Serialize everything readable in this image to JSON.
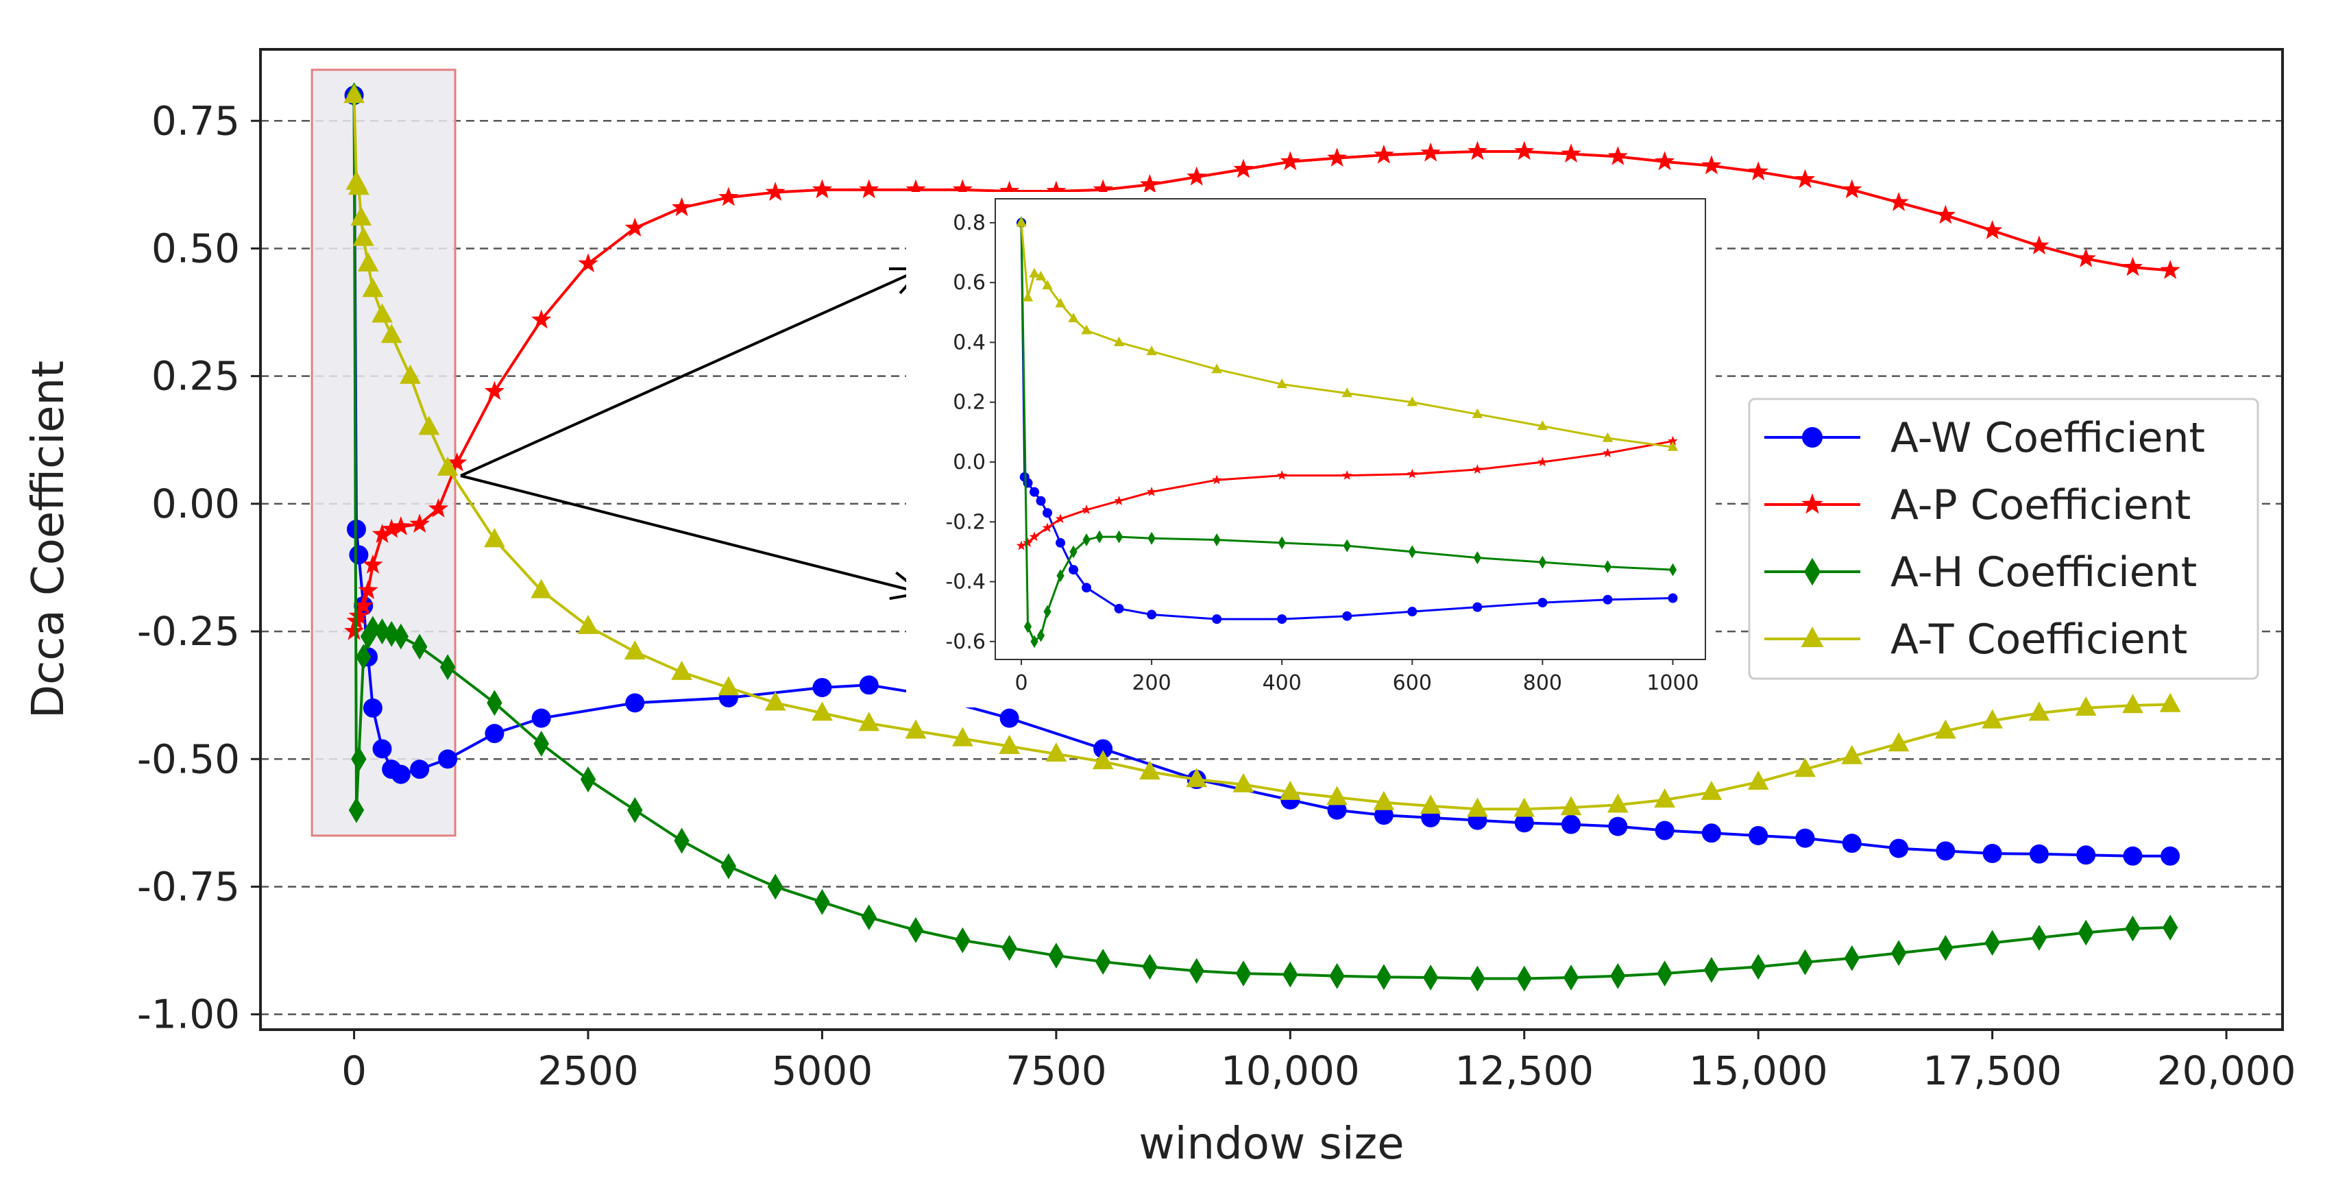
{
  "chart_data": {
    "type": "line",
    "title": "",
    "xlabel": "window size",
    "ylabel": "Dcca Coefficient",
    "xlim": [
      -1000,
      20600
    ],
    "ylim": [
      -1.03,
      0.89
    ],
    "xticks": [
      0,
      2500,
      5000,
      7500,
      10000,
      12500,
      15000,
      17500,
      20000
    ],
    "xtick_labels": [
      "0",
      "2500",
      "5000",
      "7500",
      "10,000",
      "12,500",
      "15,000",
      "17,500",
      "20,000"
    ],
    "yticks": [
      0.75,
      0.5,
      0.25,
      0.0,
      -0.25,
      -0.5,
      -0.75,
      -1.0
    ],
    "ytick_labels": [
      "0.75",
      "0.50",
      "0.25",
      "0.00",
      "-0.25",
      "-0.50",
      "-0.75",
      "-1.00"
    ],
    "grid": "horizontal dashed",
    "legend_position": "right",
    "highlight_box": {
      "x": [
        -450,
        1080
      ],
      "y": [
        -0.65,
        0.85
      ]
    },
    "series": [
      {
        "name": "A-W Coefficient",
        "color": "#0000ff",
        "marker": "circle",
        "x": [
          0,
          25,
          50,
          100,
          150,
          200,
          300,
          400,
          500,
          700,
          1000,
          1500,
          2000,
          3000,
          4000,
          5000,
          5500,
          6000,
          7000,
          8000,
          9000,
          10000,
          10500,
          11000,
          11500,
          12000,
          12500,
          13000,
          13500,
          14000,
          14500,
          15000,
          15500,
          16000,
          16500,
          17000,
          17500,
          18000,
          18500,
          19000,
          19400
        ],
        "y": [
          0.8,
          -0.05,
          -0.1,
          -0.2,
          -0.3,
          -0.4,
          -0.48,
          -0.52,
          -0.53,
          -0.52,
          -0.5,
          -0.45,
          -0.42,
          -0.39,
          -0.38,
          -0.36,
          -0.355,
          -0.37,
          -0.42,
          -0.48,
          -0.54,
          -0.58,
          -0.6,
          -0.61,
          -0.615,
          -0.62,
          -0.625,
          -0.628,
          -0.632,
          -0.64,
          -0.645,
          -0.65,
          -0.655,
          -0.665,
          -0.675,
          -0.68,
          -0.685,
          -0.686,
          -0.688,
          -0.69,
          -0.69
        ]
      },
      {
        "name": "A-P Coefficient",
        "color": "#ff0000",
        "marker": "star",
        "x": [
          0,
          25,
          50,
          100,
          150,
          200,
          300,
          400,
          500,
          700,
          900,
          1100,
          1500,
          2000,
          2500,
          3000,
          3500,
          4000,
          4500,
          5000,
          5500,
          6000,
          6500,
          7000,
          7500,
          8000,
          8500,
          9000,
          9500,
          10000,
          10500,
          11000,
          11500,
          12000,
          12500,
          13000,
          13500,
          14000,
          14500,
          15000,
          15500,
          16000,
          16500,
          17000,
          17500,
          18000,
          18500,
          19000,
          19400
        ],
        "y": [
          -0.25,
          -0.23,
          -0.22,
          -0.2,
          -0.17,
          -0.12,
          -0.06,
          -0.05,
          -0.045,
          -0.04,
          -0.01,
          0.08,
          0.22,
          0.36,
          0.47,
          0.54,
          0.58,
          0.6,
          0.61,
          0.615,
          0.615,
          0.615,
          0.615,
          0.612,
          0.612,
          0.615,
          0.625,
          0.64,
          0.655,
          0.67,
          0.677,
          0.683,
          0.687,
          0.69,
          0.69,
          0.685,
          0.68,
          0.67,
          0.662,
          0.65,
          0.635,
          0.615,
          0.59,
          0.565,
          0.535,
          0.505,
          0.48,
          0.463,
          0.457
        ]
      },
      {
        "name": "A-H Coefficient",
        "color": "#008000",
        "marker": "diamond",
        "x": [
          0,
          25,
          50,
          100,
          150,
          200,
          300,
          400,
          500,
          700,
          1000,
          1500,
          2000,
          2500,
          3000,
          3500,
          4000,
          4500,
          5000,
          5500,
          6000,
          6500,
          7000,
          7500,
          8000,
          8500,
          9000,
          9500,
          10000,
          10500,
          11000,
          11500,
          12000,
          12500,
          13000,
          13500,
          14000,
          14500,
          15000,
          15500,
          16000,
          16500,
          17000,
          17500,
          18000,
          18500,
          19000,
          19400
        ],
        "y": [
          0.8,
          -0.6,
          -0.5,
          -0.3,
          -0.26,
          -0.245,
          -0.25,
          -0.255,
          -0.26,
          -0.28,
          -0.32,
          -0.39,
          -0.47,
          -0.54,
          -0.6,
          -0.66,
          -0.71,
          -0.75,
          -0.78,
          -0.81,
          -0.835,
          -0.855,
          -0.87,
          -0.885,
          -0.897,
          -0.907,
          -0.915,
          -0.92,
          -0.922,
          -0.925,
          -0.927,
          -0.928,
          -0.93,
          -0.93,
          -0.928,
          -0.925,
          -0.92,
          -0.913,
          -0.907,
          -0.898,
          -0.89,
          -0.88,
          -0.87,
          -0.86,
          -0.85,
          -0.84,
          -0.832,
          -0.83
        ]
      },
      {
        "name": "A-T Coefficient",
        "color": "#bfbf00",
        "marker": "triangle",
        "x": [
          0,
          25,
          50,
          75,
          100,
          150,
          200,
          300,
          400,
          600,
          800,
          1000,
          1500,
          2000,
          2500,
          3000,
          3500,
          4000,
          4500,
          5000,
          5500,
          6000,
          6500,
          7000,
          7500,
          8000,
          8500,
          9000,
          9500,
          10000,
          10500,
          11000,
          11500,
          12000,
          12500,
          13000,
          13500,
          14000,
          14500,
          15000,
          15500,
          16000,
          16500,
          17000,
          17500,
          18000,
          18500,
          19000,
          19400
        ],
        "y": [
          0.8,
          0.63,
          0.62,
          0.56,
          0.52,
          0.47,
          0.42,
          0.37,
          0.33,
          0.25,
          0.15,
          0.07,
          -0.07,
          -0.17,
          -0.24,
          -0.29,
          -0.33,
          -0.36,
          -0.39,
          -0.41,
          -0.43,
          -0.445,
          -0.46,
          -0.475,
          -0.49,
          -0.505,
          -0.525,
          -0.54,
          -0.55,
          -0.565,
          -0.575,
          -0.585,
          -0.592,
          -0.598,
          -0.598,
          -0.595,
          -0.59,
          -0.58,
          -0.565,
          -0.545,
          -0.52,
          -0.495,
          -0.47,
          -0.445,
          -0.425,
          -0.41,
          -0.4,
          -0.395,
          -0.393
        ]
      }
    ]
  },
  "inset": {
    "xlim": [
      -40,
      1050
    ],
    "ylim": [
      -0.66,
      0.88
    ],
    "xticks": [
      0,
      200,
      400,
      600,
      800,
      1000
    ],
    "xtick_labels": [
      "0",
      "200",
      "400",
      "600",
      "800",
      "1000"
    ],
    "yticks": [
      0.8,
      0.6,
      0.4,
      0.2,
      0.0,
      -0.2,
      -0.4,
      -0.6
    ],
    "ytick_labels": [
      "0.8",
      "0.6",
      "0.4",
      "0.2",
      "0.0",
      "-0.2",
      "-0.4",
      "-0.6"
    ],
    "series": [
      {
        "name": "A-W Coefficient",
        "color": "#0000ff",
        "marker": "circle",
        "x": [
          0,
          5,
          10,
          20,
          30,
          40,
          60,
          80,
          100,
          150,
          200,
          300,
          400,
          500,
          600,
          700,
          800,
          900,
          1000
        ],
        "y": [
          0.8,
          -0.05,
          -0.07,
          -0.1,
          -0.13,
          -0.17,
          -0.27,
          -0.36,
          -0.42,
          -0.49,
          -0.51,
          -0.525,
          -0.525,
          -0.515,
          -0.5,
          -0.485,
          -0.47,
          -0.46,
          -0.455
        ]
      },
      {
        "name": "A-P Coefficient",
        "color": "#ff0000",
        "marker": "star",
        "x": [
          0,
          10,
          20,
          40,
          60,
          100,
          150,
          200,
          300,
          400,
          500,
          600,
          700,
          800,
          900,
          1000
        ],
        "y": [
          -0.28,
          -0.27,
          -0.25,
          -0.22,
          -0.19,
          -0.16,
          -0.13,
          -0.1,
          -0.06,
          -0.045,
          -0.045,
          -0.04,
          -0.025,
          0.0,
          0.03,
          0.07
        ]
      },
      {
        "name": "A-H Coefficient",
        "color": "#008000",
        "marker": "diamond",
        "x": [
          0,
          10,
          20,
          30,
          40,
          60,
          80,
          100,
          120,
          150,
          200,
          300,
          400,
          500,
          600,
          700,
          800,
          900,
          1000
        ],
        "y": [
          0.8,
          -0.55,
          -0.6,
          -0.58,
          -0.5,
          -0.38,
          -0.3,
          -0.26,
          -0.25,
          -0.25,
          -0.255,
          -0.26,
          -0.27,
          -0.28,
          -0.3,
          -0.32,
          -0.335,
          -0.35,
          -0.36
        ]
      },
      {
        "name": "A-T Coefficient",
        "color": "#bfbf00",
        "marker": "triangle",
        "x": [
          0,
          10,
          20,
          30,
          40,
          60,
          80,
          100,
          150,
          200,
          300,
          400,
          500,
          600,
          700,
          800,
          900,
          1000
        ],
        "y": [
          0.8,
          0.55,
          0.63,
          0.62,
          0.59,
          0.53,
          0.48,
          0.44,
          0.4,
          0.37,
          0.31,
          0.26,
          0.23,
          0.2,
          0.16,
          0.12,
          0.08,
          0.05
        ]
      }
    ]
  }
}
